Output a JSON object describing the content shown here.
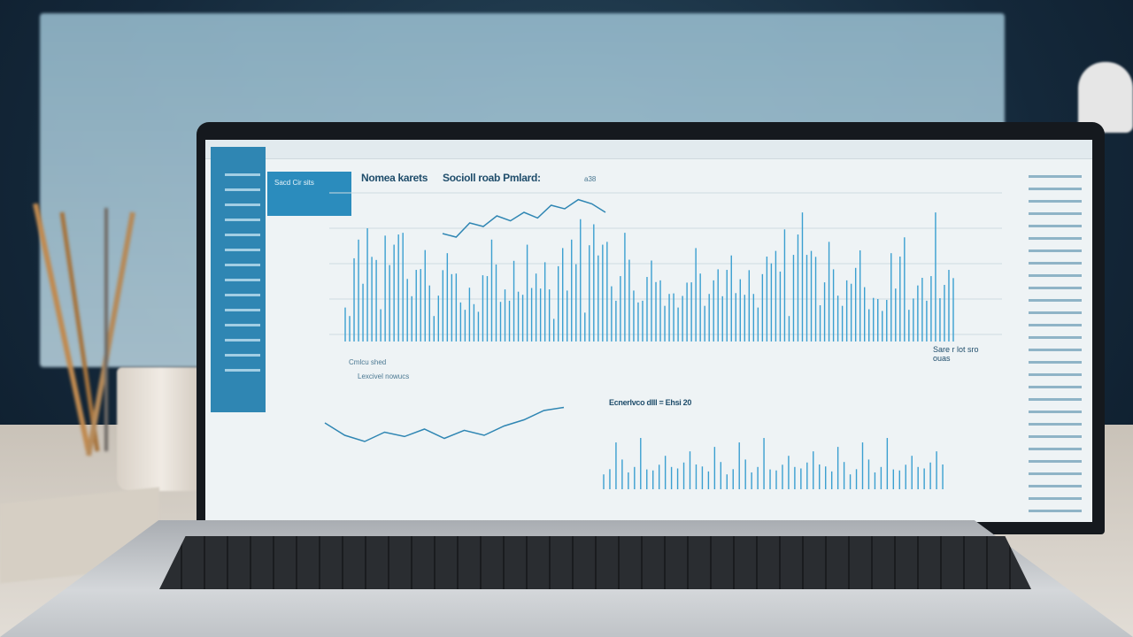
{
  "scene": {
    "background_color": "#14283a",
    "accent": "#2f86b3",
    "chart_color": "#3a9fd0"
  },
  "screen": {
    "top_chart_title_1": "Nomea karets",
    "top_chart_title_2": "Socioll roab Pmlard:",
    "top_chart_label": "a38",
    "panel_text": "Sacd Cir sits",
    "mid_label_1": "Cmlcu shed",
    "mid_label_2": "Lexcivel  nowucs",
    "bottom_right_title": "Ecnerlvco dlll = Ehsi 20",
    "right_note": "Sare r lot sro ouas"
  },
  "chart_data": {
    "type": "bar",
    "top_line": [
      30,
      25,
      45,
      40,
      55,
      48,
      60,
      52,
      70,
      65,
      78,
      72,
      60
    ],
    "top_bars": [
      40,
      75,
      30,
      90,
      55,
      35,
      65,
      25,
      80,
      45,
      30,
      95,
      50,
      40,
      70,
      35,
      60,
      85,
      45,
      30,
      55,
      75,
      40,
      65,
      90,
      50,
      35,
      80,
      60,
      45,
      70,
      95,
      55,
      65,
      85,
      100,
      75,
      60,
      90,
      70,
      55,
      45,
      65,
      40,
      30,
      80
    ],
    "bottom_line": [
      50,
      30,
      20,
      35,
      28,
      40,
      25,
      38,
      30,
      45,
      55,
      70,
      75
    ],
    "bottom_bars": [
      40,
      60,
      30,
      75,
      50,
      35,
      80,
      45,
      55,
      70,
      40,
      85,
      60,
      50,
      90,
      45,
      65,
      75,
      55,
      95,
      70,
      50,
      80,
      60,
      45,
      75,
      90,
      55
    ]
  }
}
